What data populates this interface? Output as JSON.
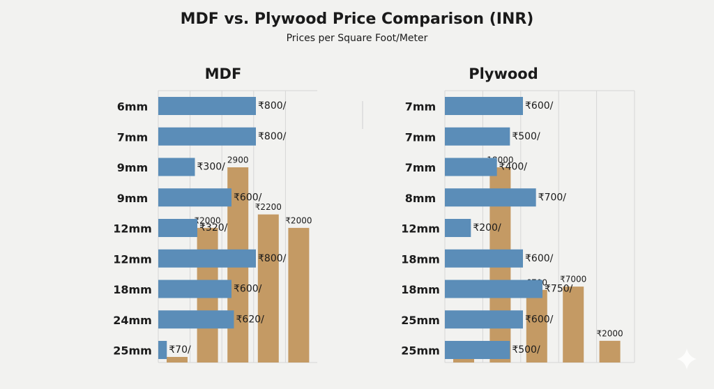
{
  "title": "MDF vs. Plywood Price Comparison (INR)",
  "subtitle": "Prices per Square Foot/Meter",
  "chart_data": [
    {
      "type": "bar",
      "title": "MDF",
      "color": "#5b8db8",
      "categories": [
        "6mm",
        "7mm",
        "9mm",
        "9mm",
        "12mm",
        "12mm",
        "18mm",
        "24mm",
        "25mm"
      ],
      "values": [
        800,
        800,
        300,
        600,
        320,
        800,
        600,
        620,
        70
      ],
      "value_labels": [
        "₹800/",
        "₹800/",
        "₹300/",
        "₹600/",
        "₹320/",
        "₹800/",
        "₹600/",
        "₹620/",
        "₹70/"
      ],
      "columns": {
        "color": "#c49a64",
        "values": [
          null,
          2000,
          2900,
          2200,
          2000
        ],
        "value_labels": [
          null,
          "₹2000",
          "2900",
          "₹2200",
          "₹2000"
        ]
      }
    },
    {
      "type": "bar",
      "title": "Plywood",
      "color": "#5b8db8",
      "categories": [
        "7mm",
        "7mm",
        "7mm",
        "8mm",
        "12mm",
        "18mm",
        "18mm",
        "25mm",
        "25mm"
      ],
      "values": [
        600,
        500,
        400,
        700,
        200,
        600,
        750,
        600,
        500
      ],
      "value_labels": [
        "₹600/",
        "₹500/",
        "₹400/",
        "₹700/",
        "₹200/",
        "₹600/",
        "₹750/",
        "₹600/",
        "₹500/"
      ],
      "columns": {
        "color": "#c49a64",
        "values": [
          null,
          18000,
          6700,
          7000,
          2000
        ],
        "value_labels": [
          null,
          "18000",
          "6700",
          "₹7000",
          "₹2000"
        ]
      }
    }
  ]
}
